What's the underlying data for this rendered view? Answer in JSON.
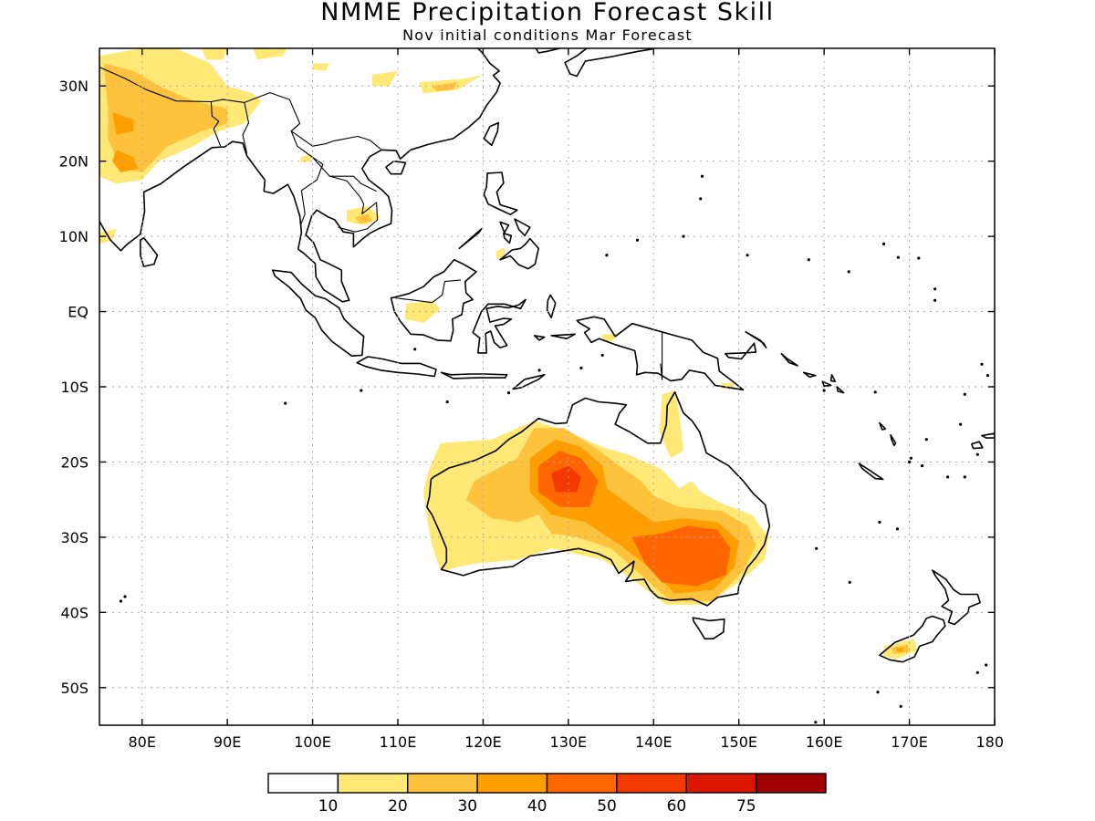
{
  "title": "NMME Precipitation Forecast Skill",
  "subtitle": "Nov initial conditions  Mar Forecast",
  "map": {
    "lon_range": [
      75,
      180
    ],
    "lat_range": [
      -55,
      35
    ],
    "lat_ticks": [
      {
        "value": 30,
        "label": "30N"
      },
      {
        "value": 20,
        "label": "20N"
      },
      {
        "value": 10,
        "label": "10N"
      },
      {
        "value": 0,
        "label": "EQ"
      },
      {
        "value": -10,
        "label": "10S"
      },
      {
        "value": -20,
        "label": "20S"
      },
      {
        "value": -30,
        "label": "30S"
      },
      {
        "value": -40,
        "label": "40S"
      },
      {
        "value": -50,
        "label": "50S"
      }
    ],
    "lon_ticks": [
      {
        "value": 80,
        "label": "80E"
      },
      {
        "value": 90,
        "label": "90E"
      },
      {
        "value": 100,
        "label": "100E"
      },
      {
        "value": 110,
        "label": "110E"
      },
      {
        "value": 120,
        "label": "120E"
      },
      {
        "value": 130,
        "label": "130E"
      },
      {
        "value": 140,
        "label": "140E"
      },
      {
        "value": 150,
        "label": "150E"
      },
      {
        "value": 160,
        "label": "160E"
      },
      {
        "value": 170,
        "label": "170E"
      },
      {
        "value": 180,
        "label": "180"
      }
    ],
    "grid": true,
    "skill_colors": {
      "10-20": "#ffe875",
      "20-30": "#ffc23d",
      "30-40": "#ff9e00",
      "40-50": "#ff6500",
      "50-60": "#f23a00"
    }
  },
  "colorbar": {
    "colors": [
      "#ffffff",
      "#ffe875",
      "#ffc23d",
      "#ff9e00",
      "#ff6500",
      "#f23a00",
      "#dc1700",
      "#a10000"
    ],
    "labels": [
      "10",
      "20",
      "30",
      "40",
      "50",
      "60",
      "75"
    ]
  }
}
